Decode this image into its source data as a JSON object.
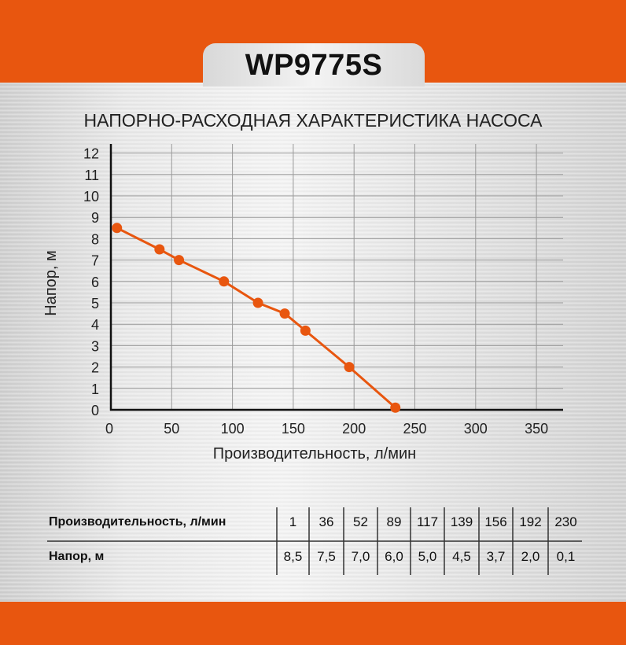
{
  "header": {
    "model": "WP9775S"
  },
  "colors": {
    "accent": "#e8560f",
    "series": "#e8560f",
    "axis": "#111111",
    "grid": "#9a9a9a"
  },
  "chart_data": {
    "type": "line",
    "title": "НАПОРНО-РАСХОДНАЯ ХАРАКТЕРИСТИКА НАСОСА",
    "xlabel": "Производительность, л/мин",
    "ylabel": "Напор, м",
    "xlim": [
      0,
      370
    ],
    "ylim": [
      0,
      12
    ],
    "xticks": [
      0,
      50,
      100,
      150,
      200,
      250,
      300,
      350
    ],
    "yticks": [
      0,
      1,
      2,
      3,
      4,
      5,
      6,
      7,
      8,
      9,
      10,
      11,
      12
    ],
    "grid": true,
    "x": [
      1,
      36,
      52,
      89,
      117,
      139,
      156,
      192,
      230
    ],
    "y": [
      8.5,
      7.5,
      7.0,
      6.0,
      5.0,
      4.5,
      3.7,
      2.0,
      0.1
    ]
  },
  "table": {
    "row_labels": [
      "Производительность, л/мин",
      "Напор, м"
    ],
    "flow": [
      "1",
      "36",
      "52",
      "89",
      "117",
      "139",
      "156",
      "192",
      "230"
    ],
    "head": [
      "8,5",
      "7,5",
      "7,0",
      "6,0",
      "5,0",
      "4,5",
      "3,7",
      "2,0",
      "0,1"
    ]
  }
}
